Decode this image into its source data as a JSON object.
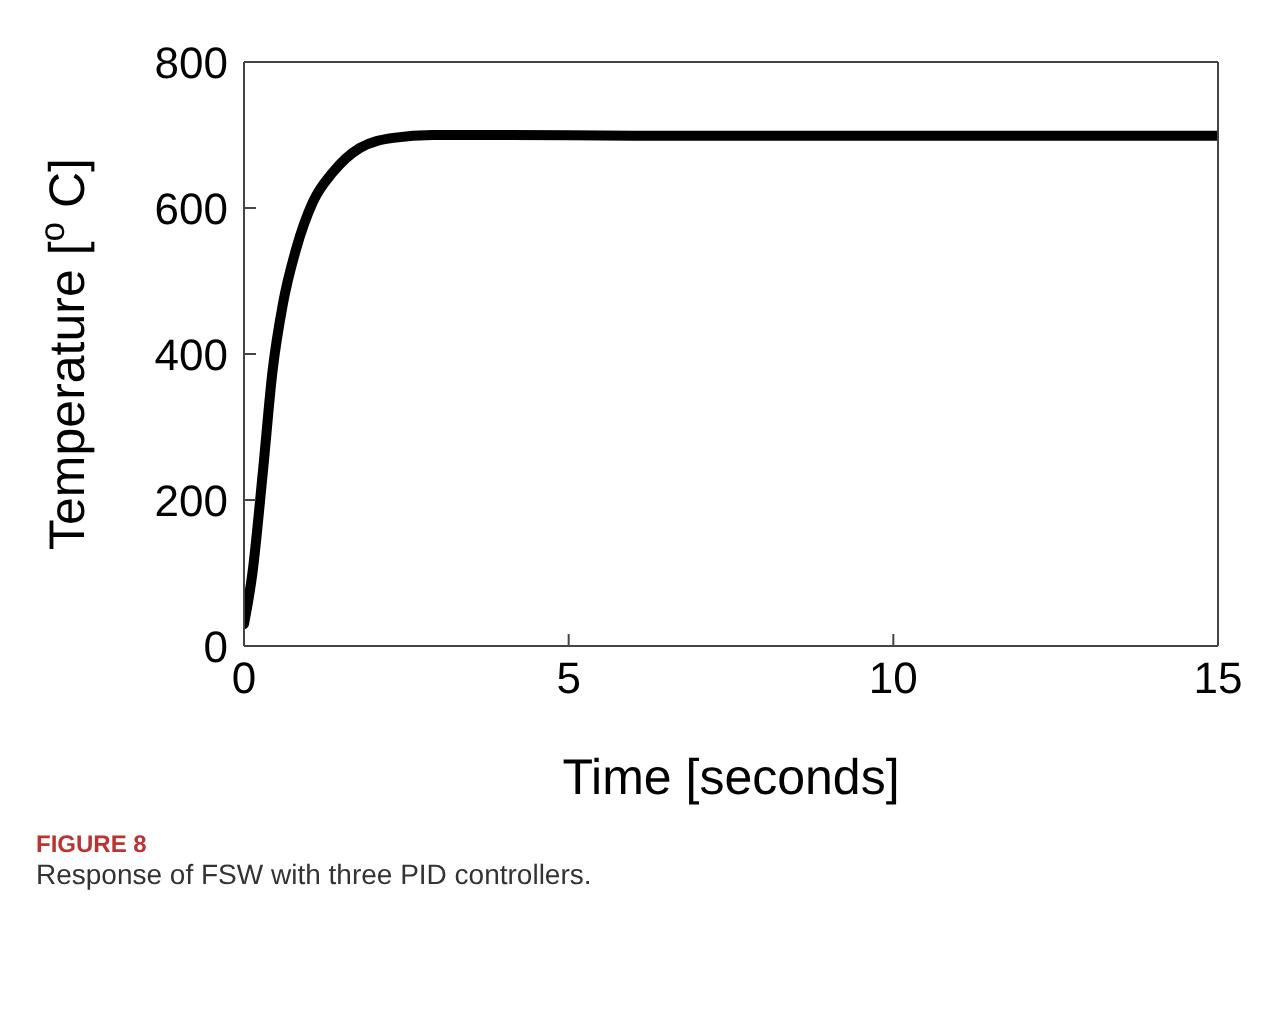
{
  "chart_data": {
    "type": "line",
    "xlabel": "Time [seconds]",
    "ylabel": "Temperature [$^{o}$ C]",
    "annotations": [
      "FIGURE 8",
      "Response of FSW with three PID controllers."
    ],
    "x": [
      0,
      0.13,
      0.29,
      0.44,
      0.6,
      0.8,
      1.06,
      1.37,
      1.78,
      2.3,
      2.9,
      4,
      6,
      8,
      10,
      12,
      15
    ],
    "series": [
      {
        "color": "#000000",
        "values": [
          30,
          100,
          238,
          377,
          469,
          543,
          608,
          649,
          682,
          696,
          700,
          700,
          699,
          699,
          699,
          699,
          699
        ]
      }
    ],
    "xlim": [
      0,
      15
    ],
    "xticks": [
      0,
      5,
      10,
      15
    ],
    "ylim": [
      0,
      800
    ],
    "yticks": [
      0,
      200,
      400,
      600,
      800
    ],
    "marker": "none",
    "line_style": "solid"
  }
}
